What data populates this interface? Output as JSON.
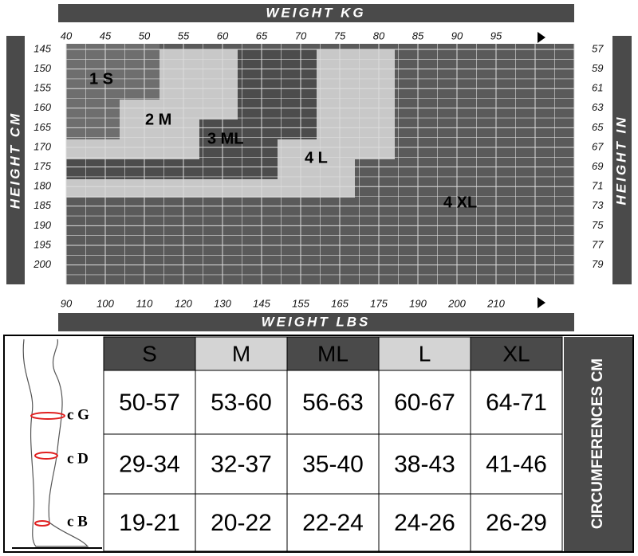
{
  "top_axis": {
    "title": "WEIGHT KG",
    "ticks": [
      40,
      45,
      50,
      55,
      60,
      65,
      70,
      75,
      80,
      85,
      90,
      95
    ]
  },
  "bottom_axis": {
    "title": "WEIGHT LBS",
    "ticks": [
      90,
      100,
      110,
      120,
      130,
      145,
      155,
      165,
      175,
      190,
      200,
      210
    ]
  },
  "left_axis": {
    "title": "HEIGHT CM",
    "ticks": [
      145,
      150,
      155,
      160,
      165,
      170,
      175,
      180,
      185,
      190,
      195,
      200
    ]
  },
  "right_axis": {
    "title": "HEIGHT IN",
    "ticks": [
      57,
      59,
      61,
      63,
      65,
      67,
      69,
      71,
      73,
      75,
      77,
      79
    ]
  },
  "regions": [
    "1 S",
    "2 M",
    "3 ML",
    "4 L",
    "4 XL"
  ],
  "table": {
    "header": [
      "S",
      "M",
      "ML",
      "L",
      "XL"
    ],
    "side_title": "CIRCUMFERENCES CM",
    "rows": [
      {
        "label": "c G",
        "cells": [
          "50-57",
          "53-60",
          "56-63",
          "60-67",
          "64-71"
        ]
      },
      {
        "label": "c D",
        "cells": [
          "29-34",
          "32-37",
          "35-40",
          "38-43",
          "41-46"
        ]
      },
      {
        "label": "c B",
        "cells": [
          "19-21",
          "20-22",
          "22-24",
          "24-26",
          "26-29"
        ]
      }
    ]
  }
}
